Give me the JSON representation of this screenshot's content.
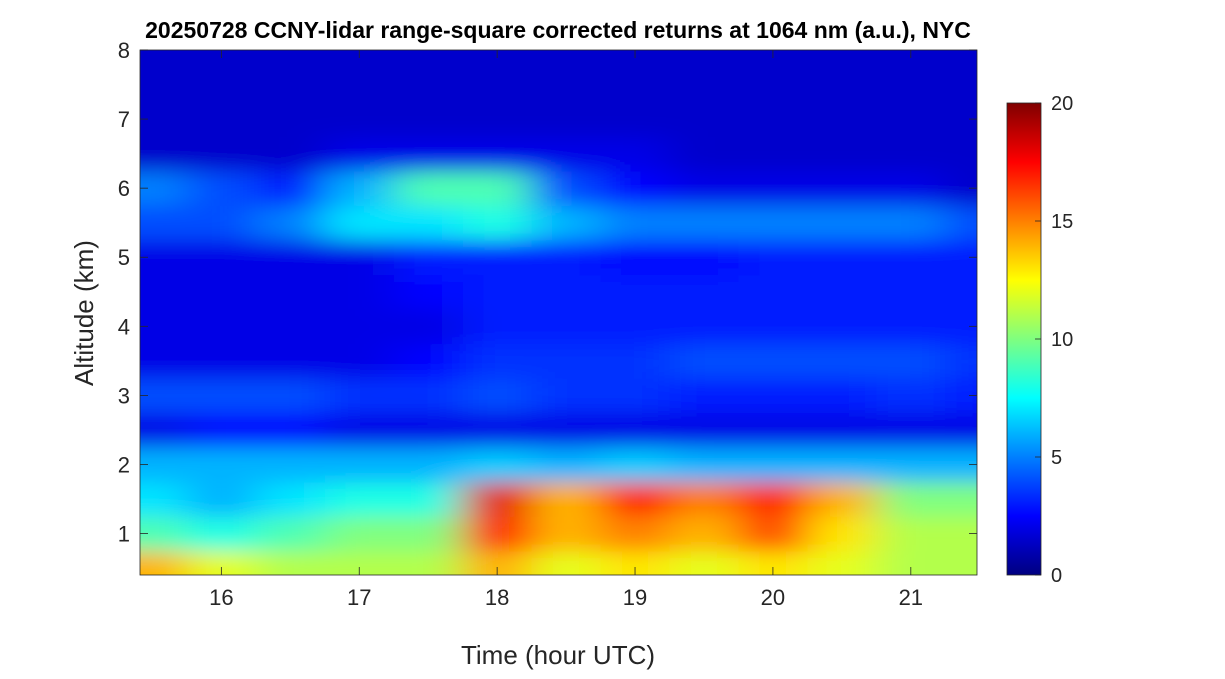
{
  "chart_data": {
    "type": "heatmap",
    "title": "20250728 CCNY-lidar range-square corrected returns at 1064 nm (a.u.), NYC",
    "xlabel": "Time (hour UTC)",
    "ylabel": "Altitude (km)",
    "xlim": [
      15.41,
      21.48
    ],
    "ylim": [
      0.4,
      8
    ],
    "xticks": [
      "16",
      "17",
      "18",
      "19",
      "20",
      "21"
    ],
    "yticks": [
      "1",
      "2",
      "3",
      "4",
      "5",
      "6",
      "7",
      "8"
    ],
    "colorbar": {
      "range": [
        0,
        20
      ],
      "ticks": [
        "0",
        "5",
        "10",
        "15",
        "20"
      ],
      "colormap": "jet"
    },
    "x": [
      15.5,
      16,
      16.5,
      17,
      17.5,
      18,
      18.5,
      19,
      19.5,
      20,
      20.5,
      21,
      21.5
    ],
    "y": [
      0.5,
      1.0,
      1.5,
      2.0,
      2.5,
      3.0,
      3.5,
      4.0,
      4.5,
      5.0,
      5.5,
      6.0,
      6.5,
      7.0,
      7.5,
      8.0
    ],
    "values": [
      [
        14,
        12,
        11,
        11,
        11,
        14,
        12,
        13,
        12,
        13,
        12,
        11,
        11
      ],
      [
        9,
        8,
        9,
        10,
        10,
        17,
        14,
        15,
        14,
        16,
        13,
        11,
        11
      ],
      [
        7,
        6,
        7,
        8,
        8,
        18,
        14,
        17,
        15,
        17,
        14,
        10,
        10
      ],
      [
        6,
        6,
        6,
        6,
        6,
        6.5,
        6,
        6.5,
        6,
        6,
        6,
        6,
        6
      ],
      [
        2,
        2.5,
        2.5,
        2,
        2,
        2,
        2,
        2,
        2,
        2,
        2,
        2,
        2
      ],
      [
        4,
        4,
        4,
        3.5,
        3.5,
        4,
        3.5,
        3.5,
        3,
        3,
        3,
        3.5,
        3
      ],
      [
        2,
        2,
        2,
        2,
        2.5,
        3.5,
        3.5,
        3.5,
        4,
        4,
        4,
        4,
        3.5
      ],
      [
        2,
        2,
        2,
        2,
        2,
        3,
        3,
        3,
        3,
        3,
        3,
        3,
        3
      ],
      [
        2,
        2,
        2,
        2,
        2.5,
        3,
        3,
        3,
        3,
        3,
        3,
        3,
        3
      ],
      [
        2,
        2,
        2,
        2,
        3,
        3,
        3,
        2.5,
        2.5,
        3,
        3,
        3,
        3
      ],
      [
        4,
        4,
        5,
        7,
        7,
        8,
        6,
        5,
        5,
        5,
        5,
        5,
        4
      ],
      [
        5,
        4,
        3,
        6,
        9,
        9,
        4,
        2.5,
        2,
        2,
        2,
        2,
        1.5
      ],
      [
        1.5,
        1.5,
        1.5,
        2,
        2,
        2,
        2,
        2,
        1.5,
        1.5,
        1.5,
        1.5,
        1.5
      ],
      [
        1.5,
        1.5,
        1.5,
        1.5,
        1.5,
        1.5,
        1.5,
        1.5,
        1.5,
        1.5,
        1.5,
        1.5,
        1.5
      ],
      [
        1.5,
        1.5,
        1.5,
        1.5,
        1.5,
        1.5,
        1.5,
        1.5,
        1.5,
        1.5,
        1.5,
        1.5,
        1.5
      ],
      [
        1.5,
        1.5,
        1.5,
        1.5,
        1.5,
        1.5,
        1.5,
        1.5,
        1.5,
        1.5,
        1.5,
        1.5,
        1.5
      ]
    ]
  }
}
